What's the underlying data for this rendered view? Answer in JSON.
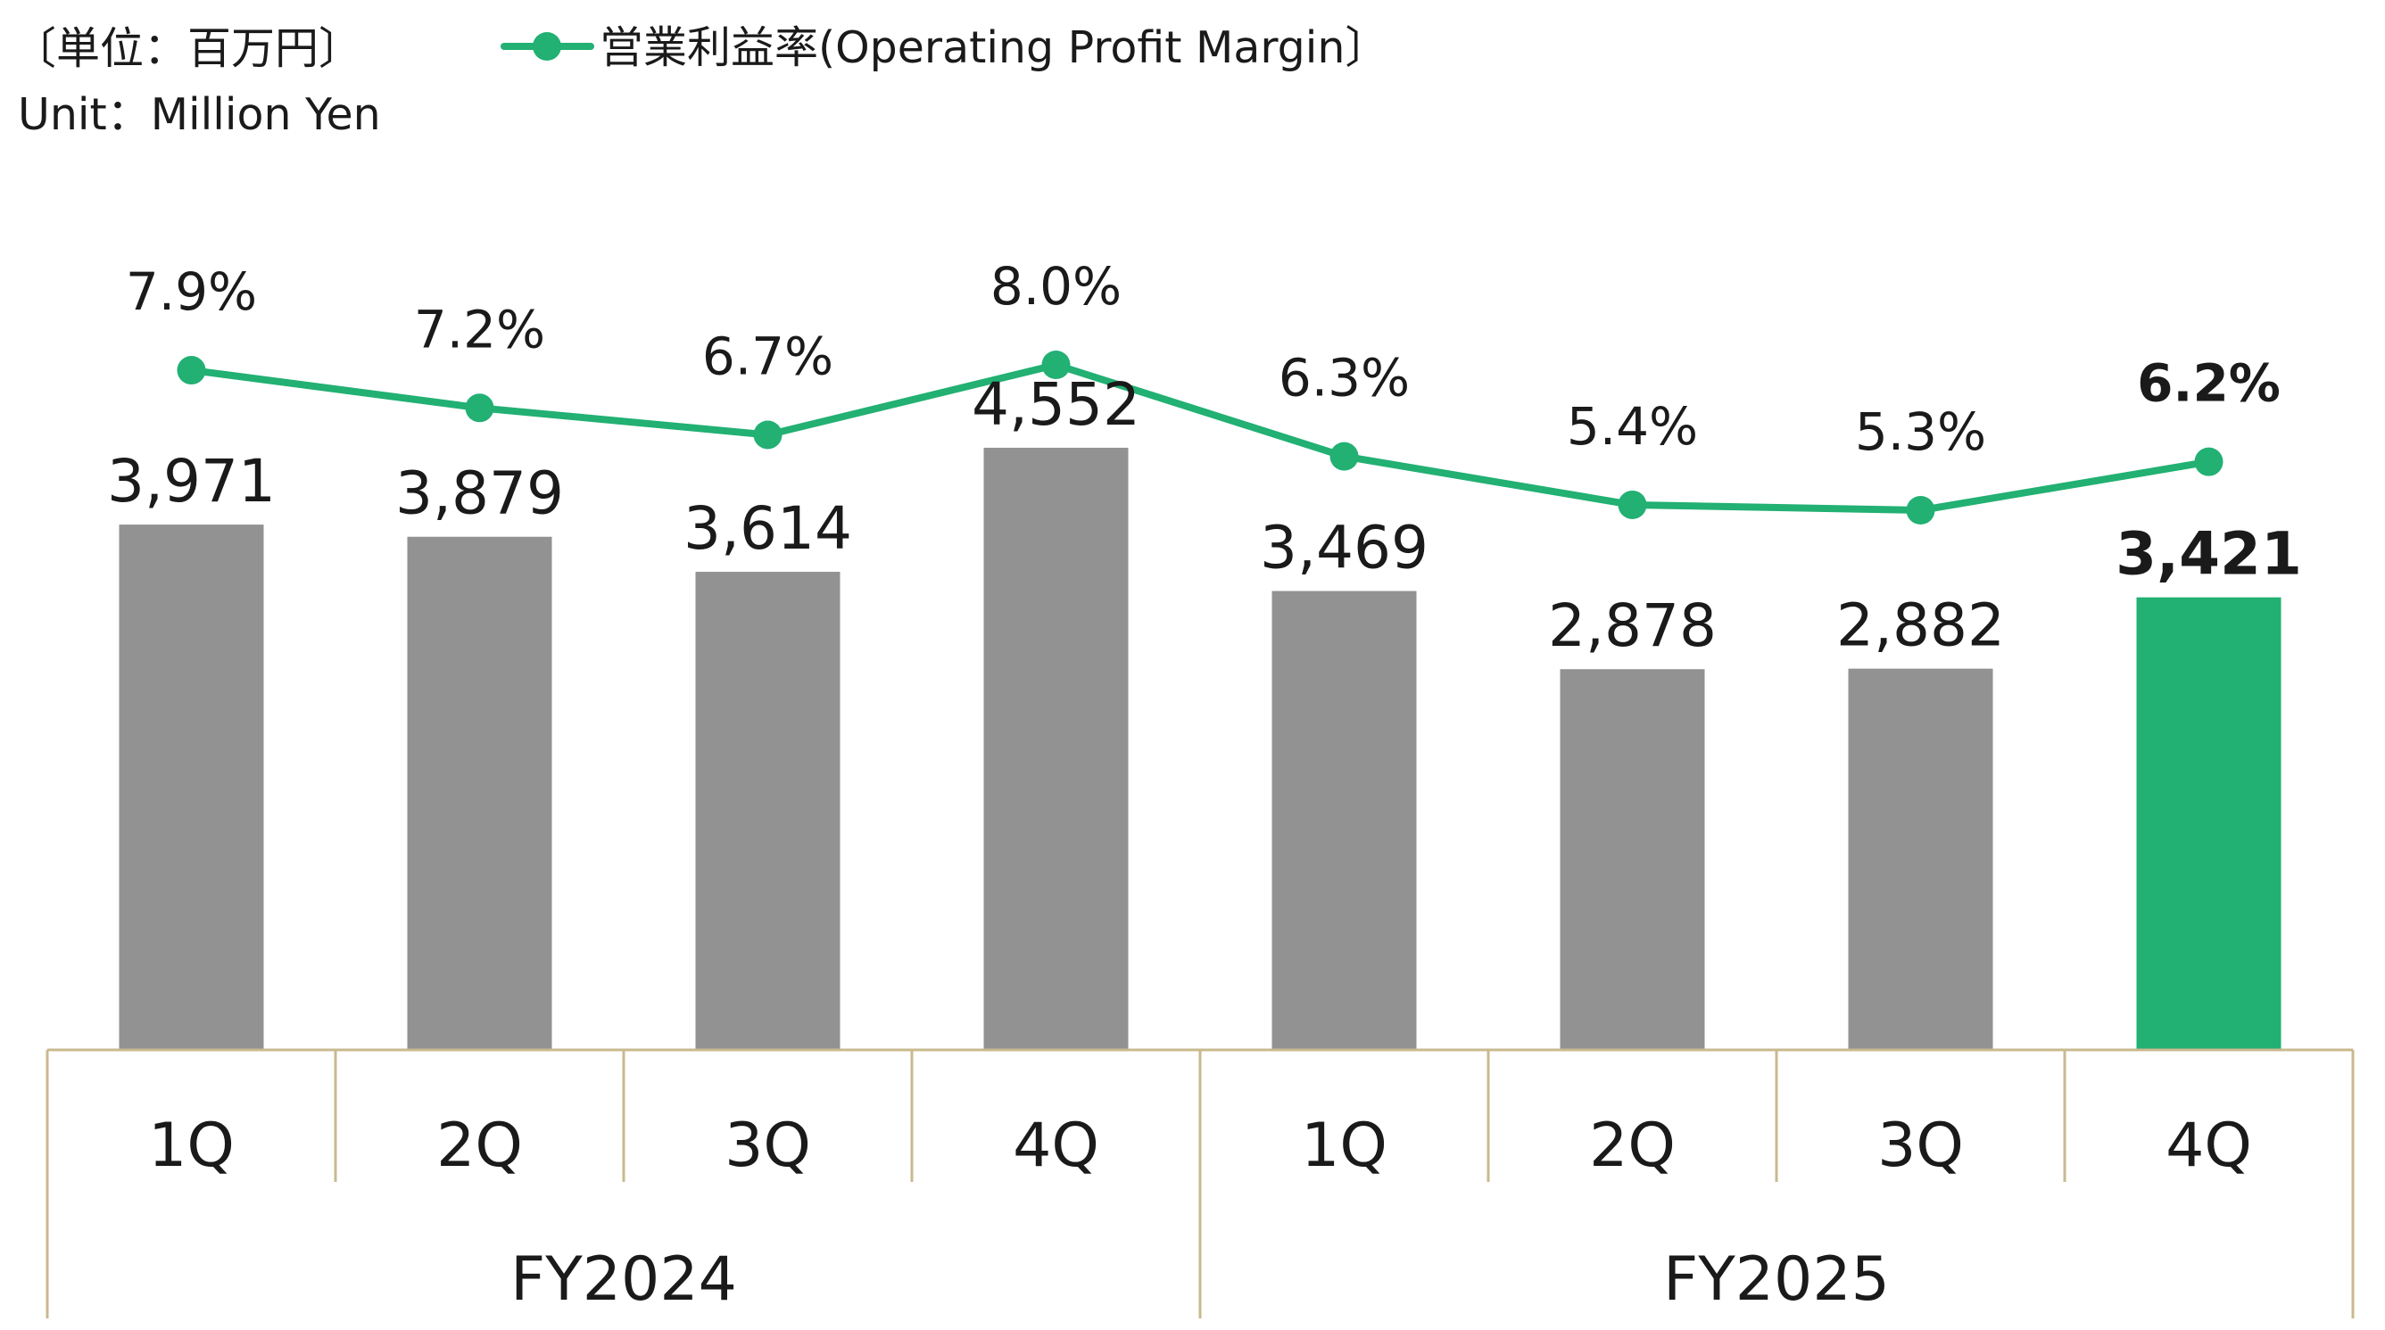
{
  "unit": {
    "line1": "〔単位：百万円〕",
    "line2": "Unit：Million Yen"
  },
  "legend": {
    "label": "営業利益率(Operating Profit Margin〕"
  },
  "colors": {
    "bar": "#929292",
    "bar_highlight": "#22b073",
    "line": "#22b073",
    "axis": "#c9b98f"
  },
  "chart_data": {
    "type": "bar",
    "categories": [
      "1Q",
      "2Q",
      "3Q",
      "4Q",
      "1Q",
      "2Q",
      "3Q",
      "4Q"
    ],
    "groups": [
      {
        "label": "FY2024",
        "categories": [
          "1Q",
          "2Q",
          "3Q",
          "4Q"
        ]
      },
      {
        "label": "FY2025",
        "categories": [
          "1Q",
          "2Q",
          "3Q",
          "4Q"
        ]
      }
    ],
    "series": [
      {
        "kind": "bar",
        "values": [
          3971,
          3879,
          3614,
          4552,
          3469,
          2878,
          2882,
          3421
        ],
        "labels": [
          "3,971",
          "3,879",
          "3,614",
          "4,552",
          "3,469",
          "2,878",
          "2,882",
          "3,421"
        ],
        "highlight_index": 7
      },
      {
        "name": "営業利益率(Operating Profit Margin〕",
        "kind": "line",
        "values": [
          7.9,
          7.2,
          6.7,
          8.0,
          6.3,
          5.4,
          5.3,
          6.2
        ],
        "labels": [
          "7.9%",
          "7.2%",
          "6.7%",
          "8.0%",
          "6.3%",
          "5.4%",
          "5.3%",
          "6.2%"
        ],
        "highlight_index": 7
      }
    ],
    "legend": "top-left",
    "grid": false
  }
}
